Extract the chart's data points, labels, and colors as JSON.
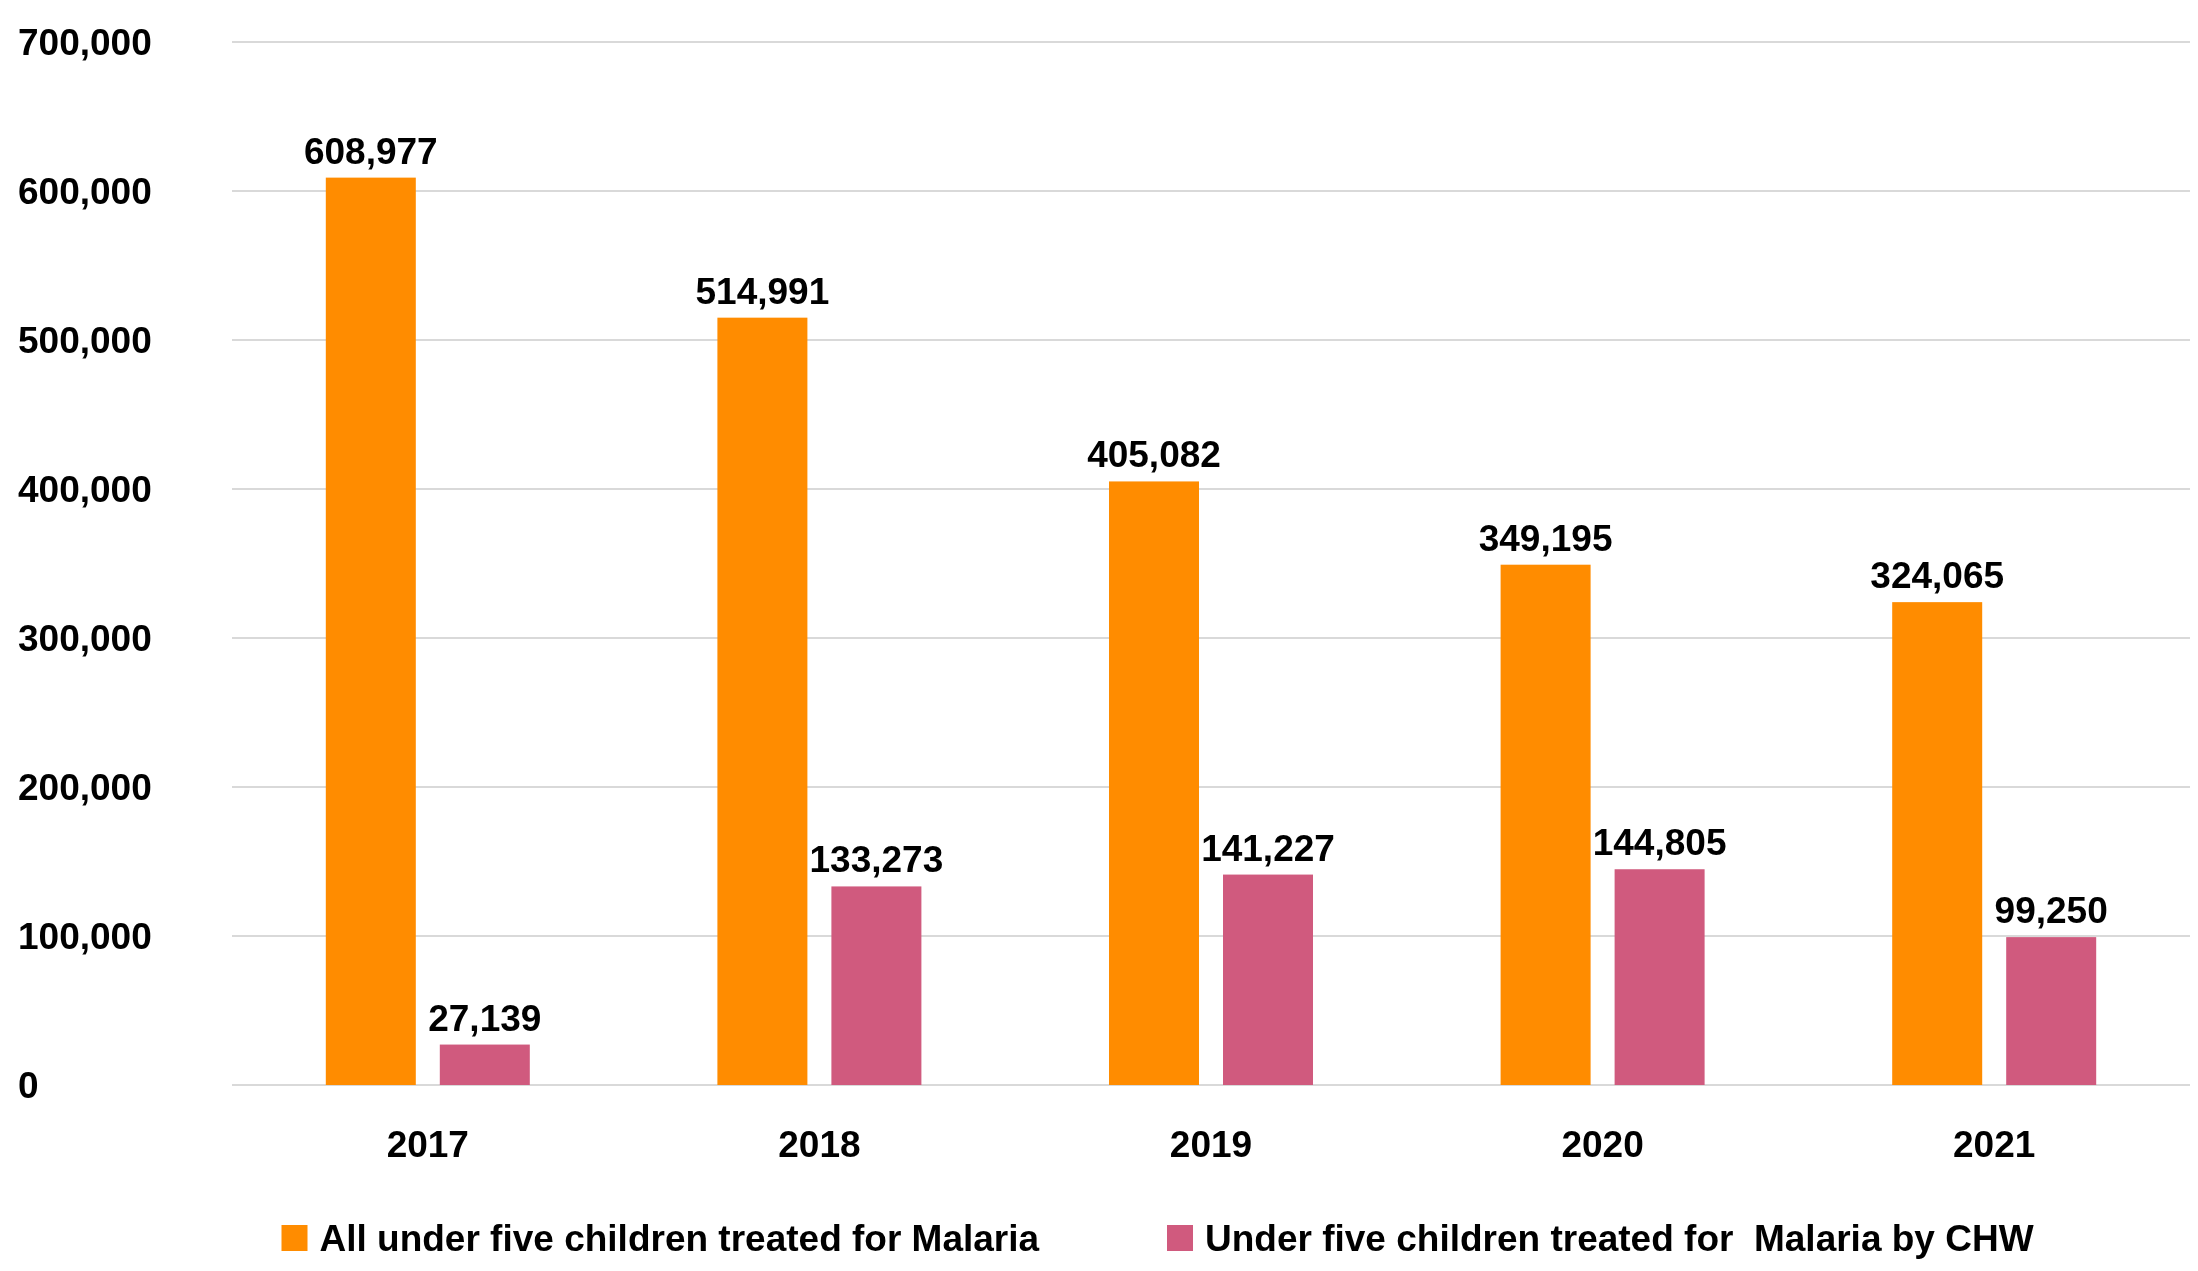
{
  "chart_data": {
    "type": "bar",
    "categories": [
      "2017",
      "2018",
      "2019",
      "2020",
      "2021"
    ],
    "series": [
      {
        "name": "All under five children treated for Malaria",
        "color": "#ff8c00",
        "values": [
          608977,
          514991,
          405082,
          349195,
          324065
        ],
        "value_labels": [
          "608,977",
          "514,991",
          "405,082",
          "349,195",
          "324,065"
        ]
      },
      {
        "name": "Under five children treated for  Malaria by CHW",
        "color": "#d05a7e",
        "values": [
          27139,
          133273,
          141227,
          144805,
          99250
        ],
        "value_labels": [
          "27,139",
          "133,273",
          "141,227",
          "144,805",
          "99,250"
        ]
      }
    ],
    "ylim": [
      0,
      700000
    ],
    "yticks": [
      {
        "value": 0,
        "label": "0"
      },
      {
        "value": 100000,
        "label": "100,000"
      },
      {
        "value": 200000,
        "label": "200,000"
      },
      {
        "value": 300000,
        "label": "300,000"
      },
      {
        "value": 400000,
        "label": "400,000"
      },
      {
        "value": 500000,
        "label": "500,000"
      },
      {
        "value": 600000,
        "label": "600,000"
      },
      {
        "value": 700000,
        "label": "700,000"
      }
    ],
    "grid": "y",
    "legend": "bottom"
  }
}
